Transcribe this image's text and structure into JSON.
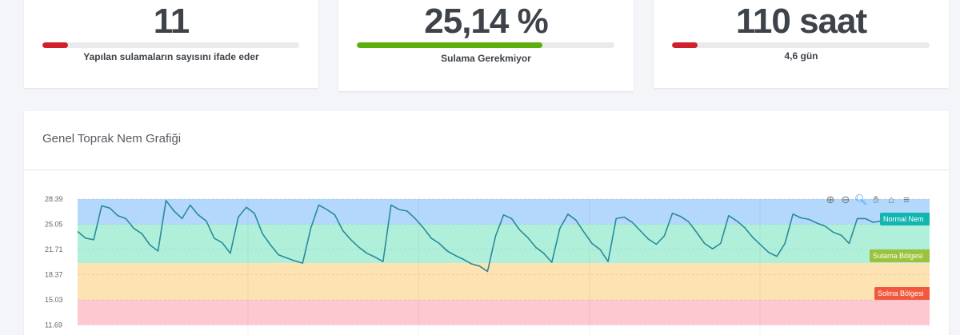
{
  "cards": [
    {
      "value": "11",
      "description": "Yapılan sulamaların sayısını ifade eder",
      "progress_percent": 10,
      "bar_color": "#d0202e"
    },
    {
      "value": "25,14 %",
      "description": "Sulama Gerekmiyor",
      "progress_percent": 72,
      "bar_color": "#5cb00e"
    },
    {
      "value": "110 saat",
      "description": "4,6 gün",
      "progress_percent": 10,
      "bar_color": "#d0202e"
    }
  ],
  "chart_card": {
    "title": "Genel Toprak Nem Grafiği"
  },
  "toolbar": {
    "icons": [
      "zoom-in-icon",
      "zoom-out-icon",
      "selection-zoom-icon",
      "pan-hand-icon",
      "home-reset-icon",
      "menu-icon"
    ],
    "glyphs": [
      "⊕",
      "⊖",
      "🔍︎",
      "✋︎",
      "⌂",
      "≡"
    ]
  },
  "chart_data": {
    "type": "line",
    "title": "",
    "xlabel": "",
    "ylabel": "",
    "y_ticks": [
      "28.39",
      "25.05",
      "21.71",
      "18.37",
      "15.03",
      "11.69"
    ],
    "ylim": [
      11.69,
      28.39
    ],
    "grid": true,
    "line_color": "#2a8a9a",
    "values": [
      24.1,
      23.2,
      23.0,
      27.5,
      27.2,
      26.2,
      25.8,
      24.5,
      23.8,
      22.3,
      21.5,
      28.2,
      26.8,
      25.8,
      27.6,
      26.3,
      25.5,
      23.2,
      22.6,
      21.2,
      26.0,
      27.3,
      26.5,
      23.8,
      22.3,
      21.0,
      20.6,
      20.2,
      19.9,
      24.5,
      27.6,
      27.0,
      26.3,
      24.2,
      23.0,
      22.0,
      21.2,
      20.7,
      20.1,
      27.6,
      27.0,
      26.8,
      25.8,
      24.6,
      23.2,
      22.5,
      21.5,
      20.9,
      20.4,
      19.8,
      19.5,
      18.8,
      23.5,
      26.3,
      25.8,
      24.3,
      23.3,
      22.0,
      21.2,
      20.0,
      24.5,
      26.4,
      25.6,
      24.0,
      22.5,
      21.7,
      20.1,
      25.8,
      26.0,
      25.3,
      24.2,
      23.1,
      22.4,
      23.5,
      26.5,
      26.1,
      25.4,
      24.0,
      22.5,
      21.8,
      22.5,
      26.2,
      25.5,
      24.6,
      23.3,
      22.3,
      21.3,
      20.8,
      22.5,
      26.4,
      25.9,
      25.7,
      25.2,
      24.8,
      24.0,
      23.6,
      22.5,
      25.8,
      25.8,
      25.3,
      25.5
    ],
    "x_count": 107,
    "bands": [
      {
        "label": "Normal Nem",
        "from": 25.05,
        "to": 28.39,
        "color": "#b3d8fb",
        "label_color": "#13b5b1"
      },
      {
        "label": "Sulama Bölgesi",
        "from": 19.9,
        "to": 25.05,
        "color": "#b0f0da",
        "label_color": "#9bc23c"
      },
      {
        "label": "Solma Bölgesi",
        "from": 15.03,
        "to": 19.9,
        "color": "#fde3b2",
        "label_color": "#f2583e"
      },
      {
        "label": "",
        "from": 11.69,
        "to": 15.03,
        "color": "#fdc8cf",
        "label_color": ""
      }
    ]
  }
}
